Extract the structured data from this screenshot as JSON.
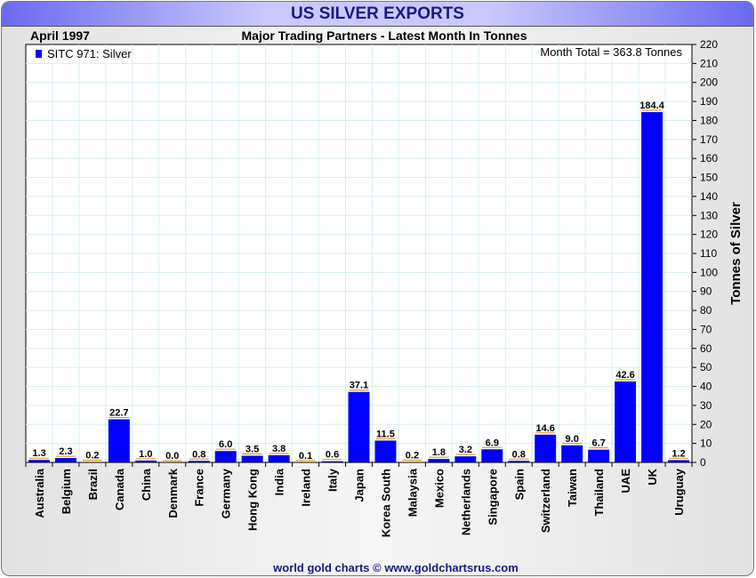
{
  "header": {
    "title": "US SILVER EXPORTS",
    "date": "April 1997",
    "subtitle": "Major Trading Partners - Latest Month In Tonnes",
    "total": "Month Total = 363.8 Tonnes",
    "footer": "world gold charts © www.goldchartsrus.com"
  },
  "chart_data": {
    "type": "bar",
    "title": "US SILVER EXPORTS",
    "subtitle": "Major Trading Partners - Latest Month In Tonnes",
    "ylabel": "Tonnes of Silver",
    "xlabel": "",
    "ylim": [
      0,
      220
    ],
    "ytick_step": 10,
    "grid": true,
    "legend": {
      "position": "top-left",
      "entries": [
        "SITC 971: Silver"
      ]
    },
    "series_color": "#0000ff",
    "categories": [
      "Australia",
      "Belgium",
      "Brazil",
      "Canada",
      "China",
      "Denmark",
      "France",
      "Germany",
      "Hong Kong",
      "India",
      "Ireland",
      "Italy",
      "Japan",
      "Korea South",
      "Malaysia",
      "Mexico",
      "Netherlands",
      "Singapore",
      "Spain",
      "Switzerland",
      "Taiwan",
      "Thailand",
      "UAE",
      "UK",
      "Uruguay"
    ],
    "values": [
      1.3,
      2.3,
      0.2,
      22.7,
      1.0,
      0.0,
      0.8,
      6.0,
      3.5,
      3.8,
      0.1,
      0.6,
      37.1,
      11.5,
      0.2,
      1.8,
      3.2,
      6.9,
      0.8,
      14.6,
      9.0,
      6.7,
      42.6,
      184.4,
      1.2
    ]
  }
}
